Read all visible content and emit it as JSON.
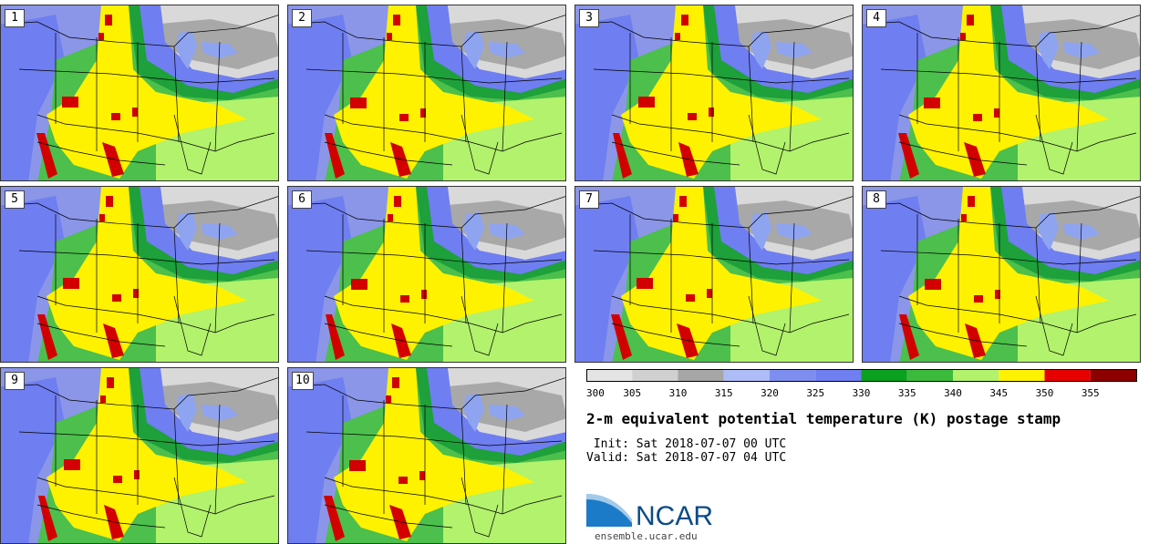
{
  "panels": [
    {
      "label": "1"
    },
    {
      "label": "2"
    },
    {
      "label": "3"
    },
    {
      "label": "4"
    },
    {
      "label": "5"
    },
    {
      "label": "6"
    },
    {
      "label": "7"
    },
    {
      "label": "8"
    },
    {
      "label": "9"
    },
    {
      "label": "10"
    }
  ],
  "colorbar": {
    "colors": [
      "#e4e4e4",
      "#d0d0d0",
      "#a6a6a6",
      "#aebcf8",
      "#7e8ef0",
      "#6f7ef0",
      "#0aa020",
      "#3cba3c",
      "#b2f26c",
      "#fff200",
      "#e60000",
      "#8c0000"
    ],
    "ticks": [
      "300",
      "305",
      "310",
      "315",
      "320",
      "325",
      "330",
      "335",
      "340",
      "345",
      "350",
      "355"
    ]
  },
  "title": "2-m equivalent potential temperature (K) postage stamp",
  "init": " Init: Sat 2018-07-07 00 UTC",
  "valid": "Valid: Sat 2018-07-07 04 UTC",
  "logo": {
    "text": "NCAR",
    "url": "ensemble.ucar.edu",
    "brand_color": "#0a4b86",
    "accent_color": "#1b7bc8"
  },
  "map_colors": {
    "ocean": "#8b96e8",
    "north_light": "#d9d9d9",
    "north_gray": "#a8a8a8",
    "lakes": "#8fa4f0",
    "blue": "#6f7ef0",
    "dark_green": "#1ea03a",
    "green": "#4cbf4c",
    "light_green": "#b2f26c",
    "yellow": "#fff200",
    "red": "#d20000",
    "line": "#000000"
  }
}
